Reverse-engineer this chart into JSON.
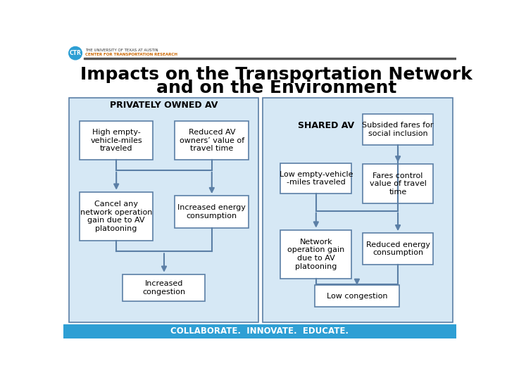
{
  "title_line1": "Impacts on the Transportation Network",
  "title_line2": "and on the Environment",
  "title_fontsize": 18,
  "title_color": "#000000",
  "header_bar_color": "#555555",
  "bg_color": "#ffffff",
  "panel_bg": "#d6e8f5",
  "box_bg": "#ffffff",
  "box_border": "#5b7fa6",
  "arrow_color": "#5b7fa6",
  "footer_bg": "#2e9fd4",
  "footer_text": "COLLABORATE.  INNOVATE.  EDUCATE.",
  "footer_color": "#ffffff",
  "left_panel_title": "PRIVATELY OWNED AV",
  "right_panel_title": "SHARED AV",
  "left_boxes": {
    "top_left": "High empty-\nvehicle-miles\ntraveled",
    "top_right": "Reduced AV\nowners’ value of\ntravel time",
    "mid_left": "Cancel any\nnetwork operation\ngain due to AV\nplatooning",
    "mid_right": "Increased energy\nconsumption",
    "bottom": "Increased\ncongestion"
  },
  "right_boxes": {
    "top_right": "Subsided fares for\nsocial inclusion",
    "mid_left": "Low empty-vehicle\n-miles traveled",
    "mid_right": "Fares control\nvalue of travel\ntime",
    "bot_left": "Network\noperation gain\ndue to AV\nplatooning",
    "bot_right": "Reduced energy\nconsumption",
    "bottom": "Low congestion"
  },
  "logo_circle_color": "#2e9fd4",
  "logo_text_color": "#ffffff",
  "uni_text_color": "#cc6600"
}
